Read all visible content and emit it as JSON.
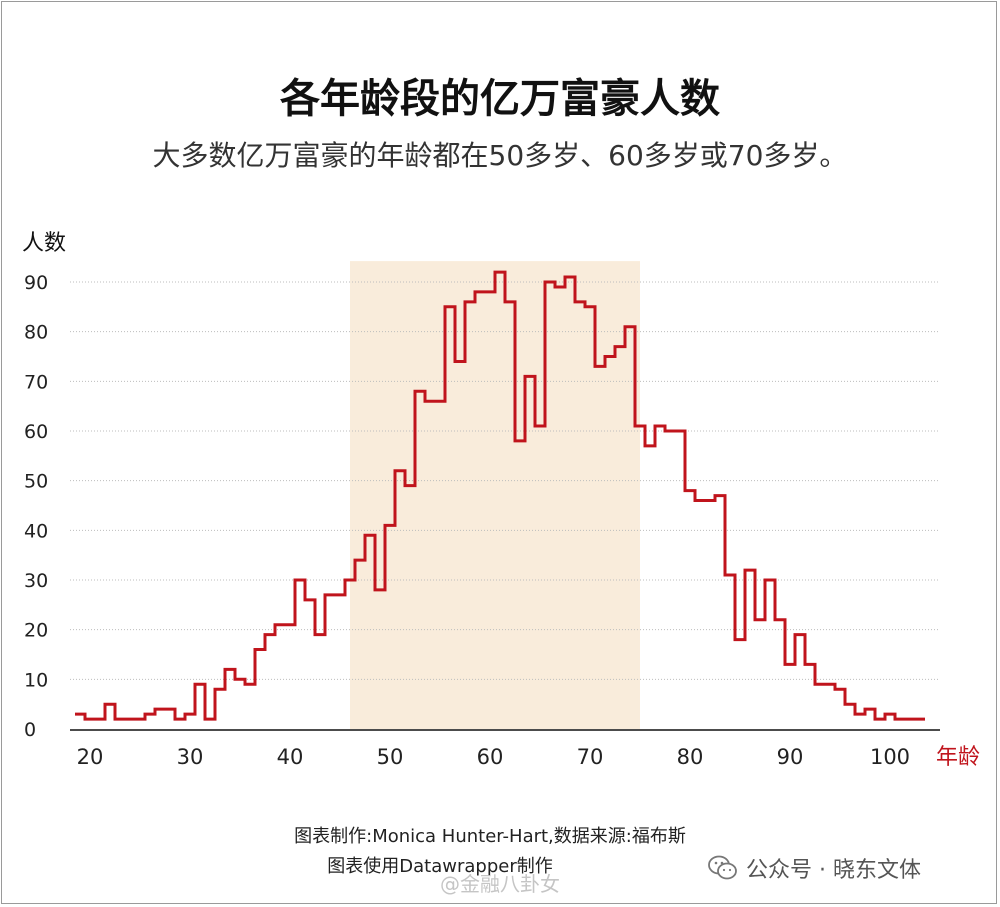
{
  "title": "各年龄段的亿万富豪人数",
  "subtitle": "大多数亿万富豪的年龄都在50多岁、60多岁或70多岁。",
  "credits": {
    "line1": "图表制作:Monica Hunter-Hart,数据来源:福布斯",
    "line2": "图表使用Datawrapper制作"
  },
  "watermarks": {
    "wechat": "公众号 · 晓东文体",
    "weibo": "@金融八卦女"
  },
  "colors": {
    "line": "#c0141c",
    "highlight": "#f9ecdb",
    "grid": "#bdbdbd"
  },
  "chart_data": {
    "type": "line",
    "step": true,
    "ylabel": "人数",
    "xlabel": "年龄",
    "xlim": [
      18,
      105
    ],
    "ylim": [
      0,
      93
    ],
    "xticks": [
      20,
      30,
      40,
      50,
      60,
      70,
      80,
      90,
      100
    ],
    "yticks": [
      0,
      10,
      20,
      30,
      40,
      50,
      60,
      70,
      80,
      90
    ],
    "highlight_range": [
      46,
      75
    ],
    "grid": true,
    "x": [
      19,
      20,
      21,
      22,
      23,
      24,
      25,
      26,
      27,
      28,
      29,
      30,
      31,
      32,
      33,
      34,
      35,
      36,
      37,
      38,
      39,
      40,
      41,
      42,
      43,
      44,
      45,
      46,
      47,
      48,
      49,
      50,
      51,
      52,
      53,
      54,
      55,
      56,
      57,
      58,
      59,
      60,
      61,
      62,
      63,
      64,
      65,
      66,
      67,
      68,
      69,
      70,
      71,
      72,
      73,
      74,
      75,
      76,
      77,
      78,
      79,
      80,
      81,
      82,
      83,
      84,
      85,
      86,
      87,
      88,
      89,
      90,
      91,
      92,
      93,
      94,
      95,
      96,
      97,
      98,
      99,
      100,
      101,
      102,
      103
    ],
    "values": [
      3,
      2,
      2,
      5,
      2,
      2,
      2,
      3,
      4,
      4,
      2,
      3,
      9,
      2,
      8,
      12,
      10,
      9,
      16,
      19,
      21,
      21,
      30,
      26,
      19,
      27,
      27,
      30,
      34,
      39,
      28,
      41,
      52,
      49,
      68,
      66,
      66,
      85,
      74,
      86,
      88,
      88,
      92,
      86,
      58,
      71,
      61,
      90,
      89,
      91,
      86,
      85,
      73,
      75,
      77,
      81,
      61,
      57,
      61,
      60,
      60,
      48,
      46,
      46,
      47,
      31,
      18,
      32,
      22,
      30,
      22,
      13,
      19,
      13,
      9,
      9,
      8,
      5,
      3,
      4,
      2,
      3,
      2,
      2,
      2
    ]
  }
}
